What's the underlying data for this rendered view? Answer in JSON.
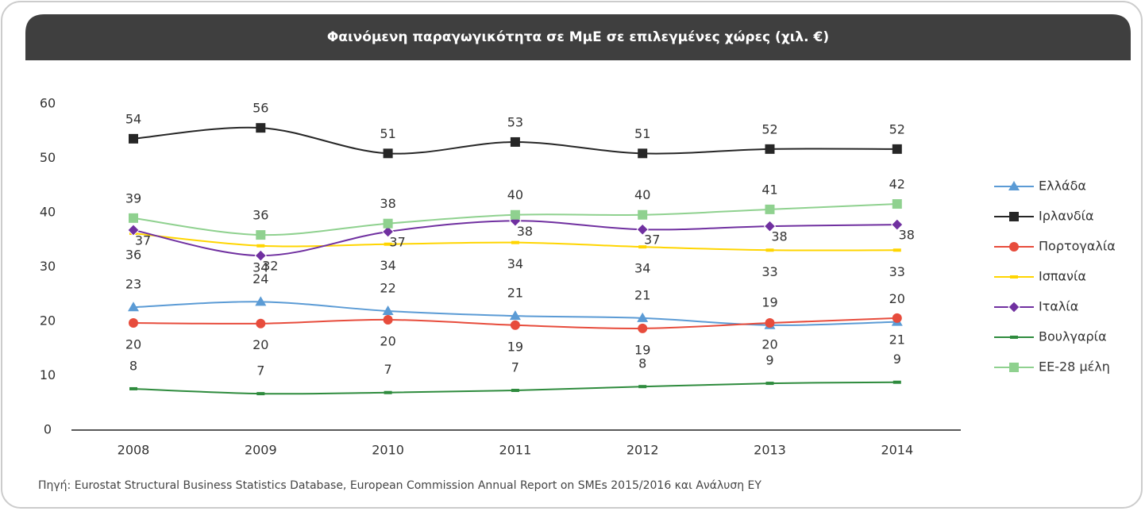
{
  "chart_data": {
    "type": "line",
    "title": "Φαινόμενη παραγωγικότητα σε ΜμΕ σε επιλεγμένες χώρες (χιλ. €)",
    "source": "Πηγή: Eurostat Structural Business Statistics Database, European Commission Annual Report on SMEs 2015/2016 και Ανάλυση ΕΥ",
    "categories": [
      "2008",
      "2009",
      "2010",
      "2011",
      "2012",
      "2013",
      "2014"
    ],
    "ylim": [
      0,
      60
    ],
    "yticks": [
      0,
      10,
      20,
      30,
      40,
      50,
      60
    ],
    "series": [
      {
        "name": "Ελλάδα",
        "color": "#5b9bd5",
        "marker": "triangle",
        "values": [
          22.6,
          23.6,
          21.9,
          21.0,
          20.6,
          19.3,
          19.9
        ],
        "value_labels": [
          "23",
          "24",
          "22",
          "21",
          "21",
          "19",
          "20"
        ]
      },
      {
        "name": "Ιρλανδία",
        "color": "#262626",
        "marker": "square",
        "values": [
          53.6,
          55.6,
          50.9,
          53.0,
          50.9,
          51.7,
          51.7
        ],
        "value_labels": [
          "54",
          "56",
          "51",
          "53",
          "51",
          "52",
          "52"
        ]
      },
      {
        "name": "Πορτογαλία",
        "color": "#e74c3c",
        "marker": "circle",
        "values": [
          19.7,
          19.6,
          20.3,
          19.3,
          18.7,
          19.7,
          20.6
        ],
        "value_labels": [
          "20",
          "20",
          "20",
          "19",
          "19",
          "20",
          "21"
        ]
      },
      {
        "name": "Ισπανία",
        "color": "#ffd500",
        "marker": "dash",
        "values": [
          36.2,
          33.9,
          34.2,
          34.5,
          33.7,
          33.1,
          33.1
        ],
        "value_labels": [
          "36",
          "34",
          "34",
          "34",
          "34",
          "33",
          "33"
        ]
      },
      {
        "name": "Ιταλία",
        "color": "#7030a0",
        "marker": "diamond",
        "values": [
          36.8,
          32.1,
          36.5,
          38.5,
          36.9,
          37.5,
          37.8
        ],
        "value_labels": [
          "37",
          "32",
          "37",
          "38",
          "37",
          "38",
          "38"
        ]
      },
      {
        "name": "Βουλγαρία",
        "color": "#2e8b3d",
        "marker": "dash",
        "values": [
          7.6,
          6.7,
          6.9,
          7.3,
          8.0,
          8.6,
          8.8
        ],
        "value_labels": [
          "8",
          "7",
          "7",
          "7",
          "8",
          "9",
          "9"
        ]
      },
      {
        "name": "ΕΕ-28 μέλη",
        "color": "#8fd18f",
        "marker": "square",
        "values": [
          39.0,
          35.9,
          38.0,
          39.6,
          39.6,
          40.6,
          41.6
        ],
        "value_labels": [
          "39",
          "36",
          "38",
          "40",
          "40",
          "41",
          "42"
        ]
      }
    ]
  }
}
